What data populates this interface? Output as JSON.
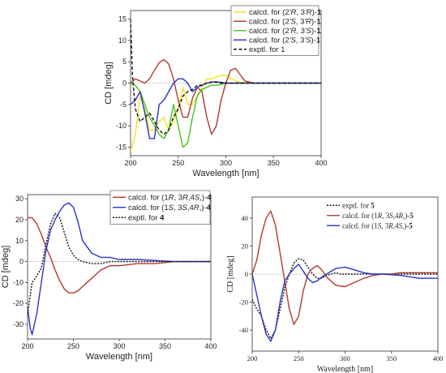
{
  "chart_data": [
    {
      "type": "line",
      "xlabel": "Wavelength [nm]",
      "ylabel": "CD [mdeg]",
      "xlim": [
        200,
        400
      ],
      "ylim": [
        -17,
        17
      ],
      "xticks": [
        200,
        250,
        300,
        350,
        400
      ],
      "yticks": [
        -15,
        -10,
        -5,
        0,
        5,
        10,
        15
      ],
      "grid": false,
      "legend_position": "top-right",
      "series": [
        {
          "name": "calcd. for (2'R, 3'R)-1",
          "color": "#f2e21c",
          "dash": "solid",
          "x": [
            200,
            205,
            210,
            215,
            220,
            225,
            230,
            235,
            240,
            245,
            250,
            255,
            260,
            265,
            270,
            275,
            280,
            285,
            290,
            295,
            300,
            305,
            310,
            315,
            320,
            330,
            340,
            360,
            400
          ],
          "y": [
            -16,
            -12,
            -3,
            -6,
            -11,
            -11,
            -9,
            -8,
            -11,
            -9,
            -6,
            -1,
            -5,
            -5,
            -3,
            -1,
            1,
            1,
            1.5,
            1.8,
            1.8,
            1.2,
            0.5,
            0.2,
            0.1,
            0,
            0,
            0,
            0
          ]
        },
        {
          "name": "calcd. for (2'S, 3'R)-1",
          "color": "#b03a2e",
          "dash": "solid",
          "x": [
            200,
            205,
            210,
            215,
            220,
            225,
            230,
            235,
            240,
            245,
            250,
            255,
            260,
            265,
            270,
            275,
            280,
            285,
            290,
            295,
            300,
            305,
            310,
            315,
            320,
            330,
            340,
            360,
            400
          ],
          "y": [
            0,
            1,
            0.5,
            0,
            1,
            3,
            4.8,
            5.5,
            4.5,
            1,
            -4,
            -8,
            -8,
            -3.5,
            -1,
            -2,
            -8,
            -12,
            -10,
            -4,
            0,
            3,
            3.5,
            2,
            0.5,
            0,
            0,
            0,
            0
          ]
        },
        {
          "name": "calcd. for (2'R, 3'S)-1",
          "color": "#44c41c",
          "dash": "solid",
          "x": [
            200,
            205,
            210,
            215,
            220,
            225,
            230,
            235,
            240,
            245,
            250,
            255,
            260,
            265,
            270,
            275,
            280,
            285,
            290,
            295,
            300,
            305,
            310,
            315,
            320,
            330,
            340,
            360,
            400
          ],
          "y": [
            0,
            -0.5,
            -2,
            -5,
            -8,
            -10,
            -12,
            -13,
            -11,
            -5,
            -10,
            -15,
            -14,
            -8,
            -3,
            -1.5,
            -1,
            -0.5,
            -0.5,
            -0.3,
            0,
            0,
            0,
            0,
            0,
            0,
            0,
            0,
            0
          ]
        },
        {
          "name": "calcd. for (2'S, 3'S)-1",
          "color": "#2a34c8",
          "dash": "solid",
          "x": [
            200,
            205,
            210,
            215,
            220,
            225,
            230,
            235,
            240,
            245,
            250,
            255,
            260,
            265,
            270,
            275,
            280,
            285,
            290,
            295,
            300,
            305,
            310,
            315,
            320,
            330,
            340,
            360,
            400
          ],
          "y": [
            -5,
            -4,
            -2,
            -7,
            -13,
            -13,
            -5,
            -4,
            -2,
            0,
            1,
            1,
            0,
            -2,
            -1,
            -0.5,
            0,
            0.3,
            0.3,
            0.2,
            0,
            0,
            0,
            0,
            0,
            0,
            0,
            0,
            0
          ]
        },
        {
          "name": "exptl. for 1",
          "color": "#111111",
          "dash": "dashed",
          "x": [
            200,
            202,
            205,
            210,
            215,
            220,
            225,
            230,
            235,
            240,
            245,
            250,
            255,
            260,
            265,
            270,
            275,
            280,
            285,
            290,
            295,
            300,
            310,
            320,
            340,
            360,
            400
          ],
          "y": [
            15,
            2,
            -6,
            -9,
            -8,
            -7,
            -9,
            -11,
            -12,
            -11,
            -8,
            -6,
            -3,
            -2,
            -1.5,
            -0.5,
            -0.5,
            0,
            0.2,
            0.2,
            0,
            0,
            0,
            0,
            0,
            0,
            0
          ]
        }
      ],
      "legend": [
        {
          "parts": [
            {
              "t": "calcd. for (2"
            },
            {
              "t": "'R",
              "i": true
            },
            {
              "t": ", 3"
            },
            {
              "t": "'R",
              "i": true
            },
            {
              "t": ")-"
            },
            {
              "t": "1",
              "b": true
            }
          ]
        },
        {
          "parts": [
            {
              "t": "calcd. for (2"
            },
            {
              "t": "'S",
              "i": true
            },
            {
              "t": ", 3"
            },
            {
              "t": "'R",
              "i": true
            },
            {
              "t": ")-"
            },
            {
              "t": "1",
              "b": true
            }
          ]
        },
        {
          "parts": [
            {
              "t": "calcd. for (2"
            },
            {
              "t": "'R",
              "i": true
            },
            {
              "t": ", 3"
            },
            {
              "t": "'S",
              "i": true
            },
            {
              "t": ")-"
            },
            {
              "t": "1",
              "b": true
            }
          ]
        },
        {
          "parts": [
            {
              "t": "calcd. for (2"
            },
            {
              "t": "'S",
              "i": true
            },
            {
              "t": ", 3"
            },
            {
              "t": "'S",
              "i": true
            },
            {
              "t": ")-"
            },
            {
              "t": "1",
              "b": true
            }
          ]
        },
        {
          "parts": [
            {
              "t": "exptl. for 1"
            }
          ]
        }
      ]
    },
    {
      "type": "line",
      "xlabel": "Wavelength [nm]",
      "ylabel": "CD [mdeg]",
      "xlim": [
        200,
        400
      ],
      "ylim": [
        -37,
        32
      ],
      "xticks": [
        200,
        250,
        300,
        350,
        400
      ],
      "yticks": [
        -30,
        -20,
        -10,
        0,
        10,
        20,
        30
      ],
      "grid": false,
      "legend_position": "top-right",
      "series": [
        {
          "name": "calcd. for (1R, 3R,4S,)-4",
          "color": "#b03a2e",
          "dash": "solid",
          "x": [
            200,
            205,
            210,
            215,
            220,
            225,
            230,
            235,
            240,
            245,
            250,
            255,
            260,
            270,
            280,
            290,
            300,
            320,
            340,
            360,
            380,
            400
          ],
          "y": [
            21,
            21,
            18,
            13,
            7,
            2,
            -4,
            -9,
            -13,
            -15,
            -15,
            -14,
            -12,
            -8,
            -4,
            -2,
            -2,
            -1,
            -1,
            0,
            0,
            0
          ]
        },
        {
          "name": "calcd. for (1S, 3S,4R,)-4",
          "color": "#2a34c8",
          "dash": "solid",
          "x": [
            200,
            203,
            205,
            210,
            215,
            220,
            225,
            230,
            235,
            240,
            245,
            250,
            255,
            260,
            270,
            280,
            290,
            300,
            320,
            340,
            360,
            380,
            400
          ],
          "y": [
            -22,
            -32,
            -35,
            -25,
            -10,
            5,
            15,
            20,
            24,
            27,
            28,
            26,
            19,
            10,
            4,
            2,
            2,
            1,
            1,
            0.5,
            0,
            0,
            0
          ]
        },
        {
          "name": "exptl. for 4",
          "color": "#111111",
          "dash": "dotted",
          "x": [
            200,
            205,
            210,
            215,
            220,
            225,
            230,
            235,
            240,
            245,
            250,
            255,
            260,
            270,
            280,
            290,
            300,
            320,
            340,
            360,
            400
          ],
          "y": [
            -25,
            -10,
            -7,
            -3,
            8,
            18,
            23,
            21,
            14,
            7,
            3,
            1,
            0,
            -1,
            -1,
            0,
            0,
            0,
            0,
            0,
            0
          ]
        }
      ],
      "legend": [
        {
          "parts": [
            {
              "t": "calcd. for (1"
            },
            {
              "t": "R",
              "i": true
            },
            {
              "t": ", 3"
            },
            {
              "t": "R",
              "i": true
            },
            {
              "t": ",4"
            },
            {
              "t": "S",
              "i": true
            },
            {
              "t": ",)-"
            },
            {
              "t": "4",
              "b": true
            }
          ]
        },
        {
          "parts": [
            {
              "t": "calcd. for (1"
            },
            {
              "t": "S",
              "i": true
            },
            {
              "t": ", 3"
            },
            {
              "t": "S",
              "i": true
            },
            {
              "t": ",4"
            },
            {
              "t": "R",
              "i": true
            },
            {
              "t": ",)-"
            },
            {
              "t": "4",
              "b": true
            }
          ]
        },
        {
          "parts": [
            {
              "t": "exptl. for "
            },
            {
              "t": "4",
              "b": true
            }
          ]
        }
      ]
    },
    {
      "type": "line",
      "xlabel": "Wavelength [nm]",
      "ylabel": "CD [mdeg]",
      "xlim": [
        200,
        400
      ],
      "ylim": [
        -55,
        55
      ],
      "xticks": [
        200,
        250,
        300,
        350,
        400
      ],
      "yticks": [
        -40,
        -20,
        0,
        20,
        40
      ],
      "grid": false,
      "legend_position": "top-right",
      "series": [
        {
          "name": "exptl. for 5",
          "color": "#111111",
          "dash": "dotted",
          "x": [
            200,
            205,
            210,
            215,
            220,
            225,
            230,
            235,
            240,
            245,
            250,
            255,
            260,
            265,
            270,
            275,
            280,
            285,
            290,
            295,
            300,
            310,
            320,
            340,
            360,
            380,
            400
          ],
          "y": [
            -18,
            -25,
            -30,
            -40,
            -46,
            -40,
            -25,
            -10,
            0,
            8,
            11,
            10,
            5,
            0,
            -3,
            -3,
            -1,
            0,
            1,
            0,
            0,
            0,
            0,
            0,
            0,
            0,
            0
          ]
        },
        {
          "name": "calcd. for (1R, 3S,4R,)-5",
          "color": "#b03a2e",
          "dash": "solid",
          "x": [
            200,
            205,
            210,
            215,
            220,
            225,
            230,
            235,
            240,
            245,
            250,
            255,
            260,
            265,
            270,
            275,
            280,
            290,
            300,
            310,
            320,
            330,
            340,
            350,
            360,
            380,
            400
          ],
          "y": [
            0,
            10,
            28,
            40,
            45,
            35,
            15,
            -5,
            -25,
            -36,
            -30,
            -12,
            0,
            4,
            6,
            3,
            -2,
            -8,
            -9,
            -6,
            -3,
            -1,
            0,
            0,
            1,
            1,
            1
          ]
        },
        {
          "name": "calcd. for (1S, 3R,4S,)-5",
          "color": "#2a34c8",
          "dash": "solid",
          "x": [
            200,
            205,
            210,
            215,
            220,
            225,
            230,
            235,
            240,
            245,
            250,
            255,
            260,
            265,
            270,
            275,
            280,
            290,
            300,
            310,
            320,
            330,
            340,
            360,
            380,
            400
          ],
          "y": [
            0,
            -15,
            -30,
            -43,
            -48,
            -40,
            -20,
            -5,
            0,
            4,
            7,
            2,
            -3,
            -6,
            -5,
            -2,
            0,
            4,
            5,
            3,
            1,
            0,
            0,
            -1,
            -3,
            -3
          ]
        }
      ],
      "legend": [
        {
          "parts": [
            {
              "t": "exptl. for "
            },
            {
              "t": "5",
              "b": true
            }
          ]
        },
        {
          "parts": [
            {
              "t": "calcd. for (1"
            },
            {
              "t": "R",
              "i": true
            },
            {
              "t": ", 3"
            },
            {
              "t": "S",
              "i": true
            },
            {
              "t": ",4"
            },
            {
              "t": "R",
              "i": true
            },
            {
              "t": ",)-"
            },
            {
              "t": "5",
              "b": true
            }
          ]
        },
        {
          "parts": [
            {
              "t": "calcd. for (1"
            },
            {
              "t": "S",
              "i": true
            },
            {
              "t": ", 3"
            },
            {
              "t": "R",
              "i": true
            },
            {
              "t": ",4"
            },
            {
              "t": "S",
              "i": true
            },
            {
              "t": ",)-"
            },
            {
              "t": "5",
              "b": true
            }
          ]
        }
      ]
    }
  ]
}
